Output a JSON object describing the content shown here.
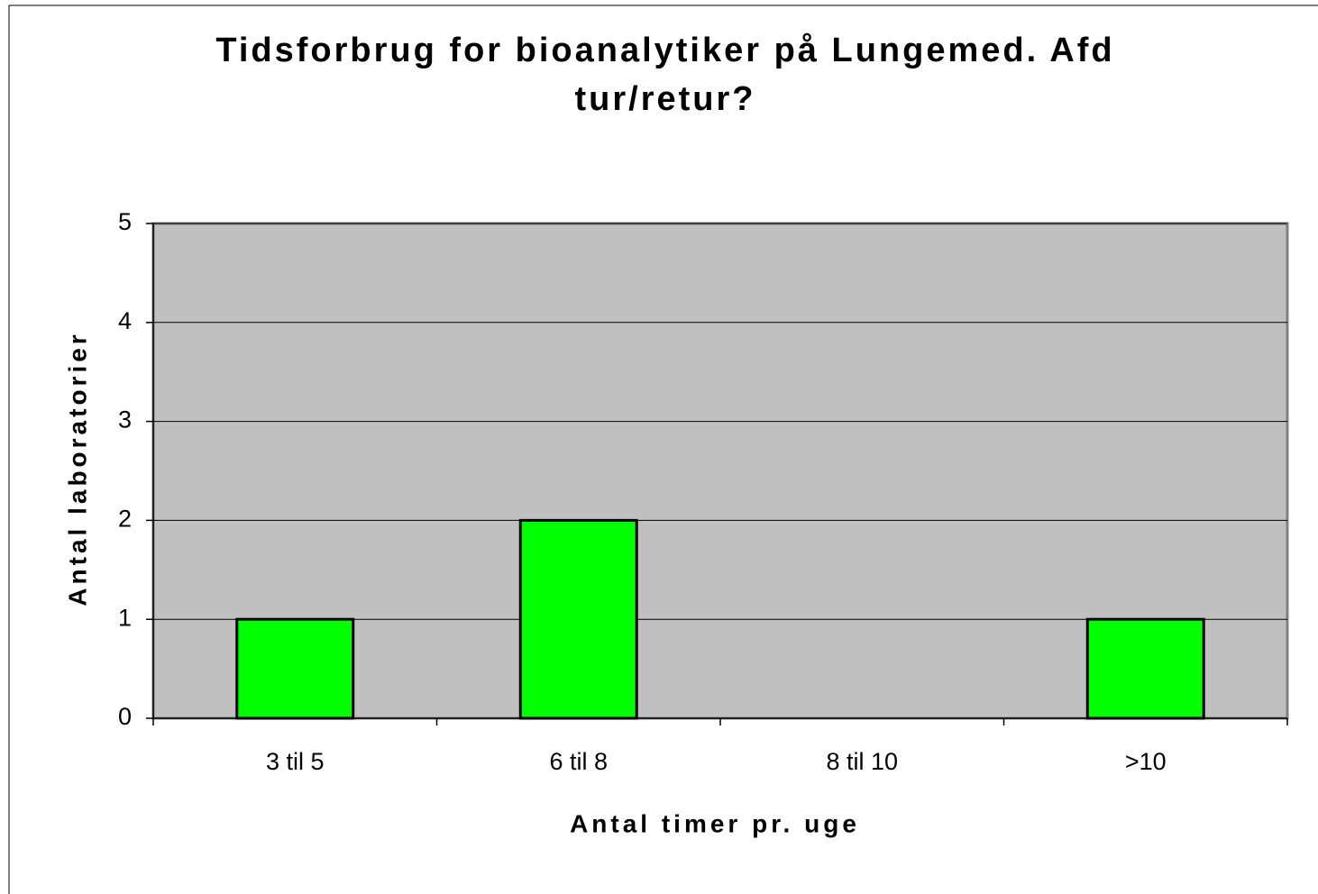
{
  "chart_data": {
    "type": "bar",
    "title": [
      "Tidsforbrug for bioanalytiker på Lungemed. Afd",
      "tur/retur?"
    ],
    "xlabel": "Antal timer pr. uge",
    "ylabel": "Antal laboratorier",
    "categories": [
      "3 til 5",
      "6 til 8",
      "8 til 10",
      ">10"
    ],
    "values": [
      1,
      2,
      0,
      1
    ],
    "color": "#00ff00",
    "ylim": [
      0,
      5
    ],
    "yticks": [
      0,
      1,
      2,
      3,
      4,
      5
    ],
    "grid": true
  }
}
